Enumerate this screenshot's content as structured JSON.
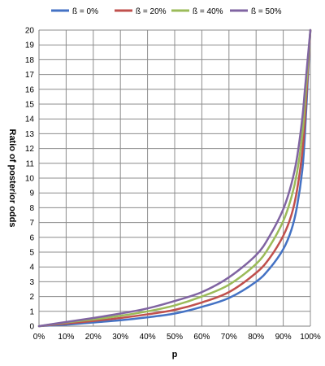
{
  "chart_data": {
    "type": "line",
    "title": "",
    "xlabel": "p",
    "ylabel": "Ratio of posterior odds",
    "xlim": [
      0,
      1
    ],
    "ylim": [
      0,
      20
    ],
    "x_ticks": [
      "0%",
      "10%",
      "20%",
      "30%",
      "40%",
      "50%",
      "60%",
      "70%",
      "80%",
      "90%",
      "100%"
    ],
    "y_ticks": [
      "0",
      "1",
      "2",
      "3",
      "4",
      "5",
      "6",
      "7",
      "8",
      "9",
      "10",
      "11",
      "12",
      "13",
      "14",
      "15",
      "16",
      "17",
      "18",
      "19",
      "20"
    ],
    "grid": true,
    "legend_position": "top",
    "x": [
      0.0,
      0.1,
      0.2,
      0.3,
      0.4,
      0.5,
      0.6,
      0.7,
      0.8,
      0.85,
      0.9,
      0.93,
      0.95,
      0.97,
      0.98,
      0.99,
      1.0
    ],
    "series": [
      {
        "name": "ß = 0%",
        "color": "#4472C4",
        "values": [
          0.0,
          0.1,
          0.25,
          0.4,
          0.6,
          0.85,
          1.3,
          1.9,
          3.0,
          3.9,
          5.2,
          6.5,
          8.0,
          10.5,
          13.0,
          16.5,
          20.0
        ]
      },
      {
        "name": "ß = 20%",
        "color": "#C0504D",
        "values": [
          0.0,
          0.18,
          0.35,
          0.55,
          0.8,
          1.1,
          1.6,
          2.3,
          3.6,
          4.6,
          6.1,
          7.5,
          9.1,
          11.7,
          14.0,
          17.0,
          20.0
        ]
      },
      {
        "name": "ß = 40%",
        "color": "#9BBB59",
        "values": [
          0.0,
          0.25,
          0.45,
          0.7,
          1.0,
          1.4,
          2.0,
          2.8,
          4.2,
          5.4,
          7.1,
          8.7,
          10.3,
          12.9,
          15.0,
          17.5,
          20.0
        ]
      },
      {
        "name": "ß = 50%",
        "color": "#8064A2",
        "values": [
          0.0,
          0.28,
          0.55,
          0.85,
          1.2,
          1.7,
          2.3,
          3.3,
          4.8,
          6.1,
          7.9,
          9.6,
          11.3,
          14.0,
          16.0,
          18.0,
          20.0
        ]
      }
    ]
  }
}
